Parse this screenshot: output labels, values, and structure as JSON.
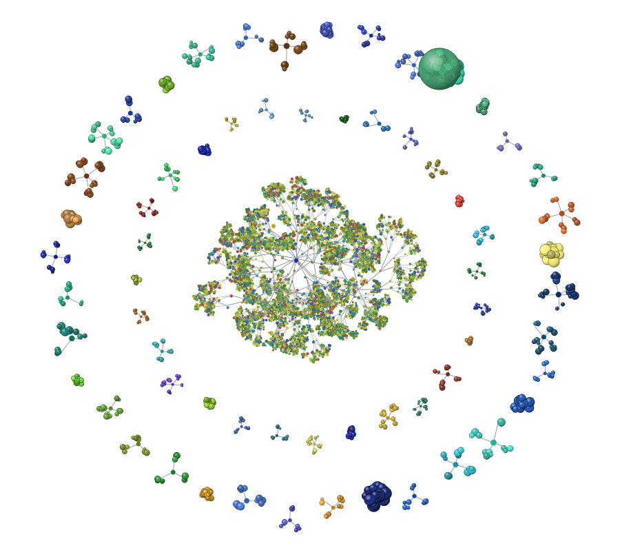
{
  "background": "#ffffff",
  "central_cluster": {
    "colors": [
      "#9aad3c",
      "#7f9a2a",
      "#b3c24a",
      "#4a7a2b",
      "#3a57b5",
      "#c8c45a",
      "#2f8f8a",
      "#b54a3a",
      "#6a9a3a"
    ]
  },
  "outer_ring": {
    "clusters": [
      {
        "color": "#4052c2"
      },
      {
        "color": "#1f2fa8"
      },
      {
        "color": "#3f66c9"
      },
      {
        "color": "#1fb38a"
      },
      {
        "color": "#3c9b6a"
      },
      {
        "color": "#6f6fc9"
      },
      {
        "color": "#1a9a7a"
      },
      {
        "color": "#c2541a"
      },
      {
        "color": "#d6c95a"
      },
      {
        "color": "#0d2f6f"
      },
      {
        "color": "#0f4f6f"
      },
      {
        "color": "#1a5fb5"
      },
      {
        "color": "#1a4fb0"
      },
      {
        "color": "#2fc2b0"
      },
      {
        "color": "#1fa3b5"
      },
      {
        "color": "#154fb0"
      },
      {
        "color": "#0f1f6f"
      },
      {
        "color": "#d98a1a"
      },
      {
        "color": "#4a4ac2"
      },
      {
        "color": "#3a6ac2"
      },
      {
        "color": "#c28a1a"
      },
      {
        "color": "#1f8a2a"
      },
      {
        "color": "#6f8a1a"
      },
      {
        "color": "#5a9a2a"
      },
      {
        "color": "#5ac22a"
      },
      {
        "color": "#0f7a6a"
      },
      {
        "color": "#1aa37a"
      },
      {
        "color": "#0f1fa8"
      },
      {
        "color": "#c7853a"
      },
      {
        "color": "#7a3a0f"
      },
      {
        "color": "#3ac28a"
      },
      {
        "color": "#1a3fa8"
      },
      {
        "color": "#6fb51a"
      },
      {
        "color": "#2fb38a"
      },
      {
        "color": "#3a6fc2"
      },
      {
        "color": "#6a3a0a"
      }
    ]
  },
  "inner_ring": {
    "clusters": [
      {
        "color": "#0f5f0f"
      },
      {
        "color": "#1a6fb5"
      },
      {
        "color": "#4a5ac2"
      },
      {
        "color": "#8a7a1a"
      },
      {
        "color": "#d4372a"
      },
      {
        "color": "#1aa3c2"
      },
      {
        "color": "#0f7f1a"
      },
      {
        "color": "#1a2fa8"
      },
      {
        "color": "#c98a2a"
      },
      {
        "color": "#8a2a1a"
      },
      {
        "color": "#1f7a6a"
      },
      {
        "color": "#c9a52a"
      },
      {
        "color": "#1a1fa8"
      },
      {
        "color": "#c9c23a"
      },
      {
        "color": "#1a6a8a"
      },
      {
        "color": "#3a5fb0"
      },
      {
        "color": "#7ab51a"
      },
      {
        "color": "#5a2fc2"
      },
      {
        "color": "#1fa3a3"
      },
      {
        "color": "#a35a1a"
      },
      {
        "color": "#8aa32a"
      },
      {
        "color": "#1f8a3a"
      },
      {
        "color": "#8a1a0f"
      },
      {
        "color": "#2fc25a"
      },
      {
        "color": "#0f1fa8"
      },
      {
        "color": "#c2a31a"
      },
      {
        "color": "#5aa3c2"
      },
      {
        "color": "#3a8ac2"
      }
    ]
  }
}
